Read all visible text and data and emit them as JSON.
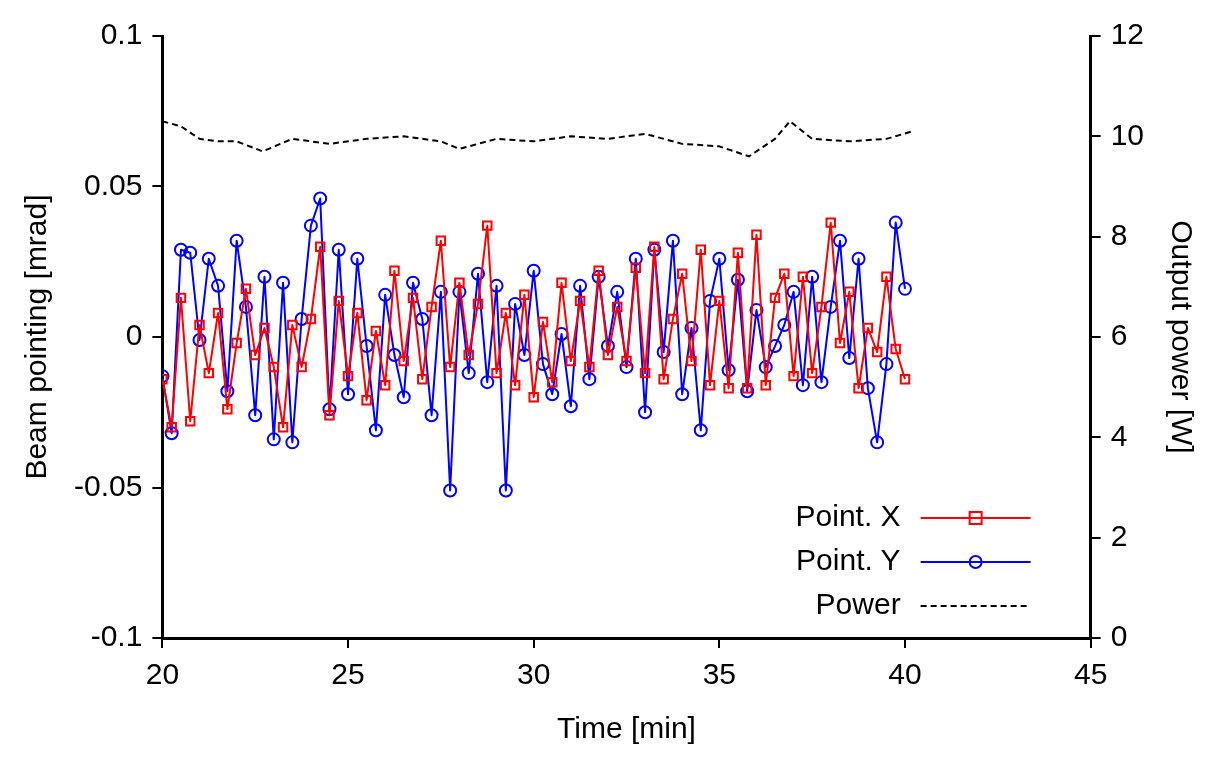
{
  "chart_data": {
    "type": "line",
    "xlabel": "Time [min]",
    "ylabel": "Beam pointing [mrad]",
    "y2label": "Output power [W]",
    "xlim": [
      20,
      45
    ],
    "xticks": [
      20,
      25,
      30,
      35,
      40,
      45
    ],
    "ylim": [
      -0.1,
      0.1
    ],
    "yticks": [
      -0.1,
      -0.05,
      0,
      0.05,
      0.1
    ],
    "y2lim": [
      0,
      12
    ],
    "y2ticks": [
      0,
      2,
      4,
      6,
      8,
      10,
      12
    ],
    "grid": false,
    "legend": "bottom right",
    "x": [
      20,
      20.25,
      20.5,
      20.75,
      21,
      21.25,
      21.5,
      21.75,
      22,
      22.25,
      22.5,
      22.75,
      23,
      23.25,
      23.5,
      23.75,
      24,
      24.25,
      24.5,
      24.75,
      25,
      25.25,
      25.5,
      25.75,
      26,
      26.25,
      26.5,
      26.75,
      27,
      27.25,
      27.5,
      27.75,
      28,
      28.25,
      28.5,
      28.75,
      29,
      29.25,
      29.5,
      29.75,
      30,
      30.25,
      30.5,
      30.75,
      31,
      31.25,
      31.5,
      31.75,
      32,
      32.25,
      32.5,
      32.75,
      33,
      33.25,
      33.5,
      33.75,
      34,
      34.25,
      34.5,
      34.75,
      35,
      35.25,
      35.5,
      35.75,
      36,
      36.25,
      36.5,
      36.75,
      37,
      37.25,
      37.5,
      37.75,
      38,
      38.25,
      38.5,
      38.75,
      39,
      39.25,
      39.5,
      39.75,
      40
    ],
    "series": [
      {
        "name": "Point. X",
        "color": "#ff0000",
        "marker": "square",
        "line_style": "solid",
        "values": [
          -0.014,
          -0.03,
          0.013,
          -0.028,
          0.004,
          -0.012,
          0.008,
          -0.024,
          -0.002,
          0.016,
          -0.006,
          0.003,
          -0.01,
          -0.03,
          0.004,
          -0.01,
          0.006,
          0.03,
          -0.026,
          0.012,
          -0.013,
          0.008,
          -0.021,
          0.002,
          -0.016,
          0.022,
          -0.008,
          0.013,
          -0.014,
          0.01,
          0.032,
          -0.01,
          0.018,
          -0.006,
          0.011,
          0.037,
          -0.012,
          0.008,
          -0.016,
          0.014,
          -0.02,
          0.005,
          -0.015,
          0.018,
          -0.008,
          0.012,
          -0.01,
          0.022,
          -0.006,
          0.01,
          -0.008,
          0.023,
          -0.012,
          0.03,
          -0.014,
          0.006,
          0.021,
          -0.008,
          0.029,
          -0.016,
          0.012,
          -0.017,
          0.028,
          -0.017,
          0.034,
          -0.016,
          0.013,
          0.021,
          -0.013,
          0.02,
          -0.012,
          0.01,
          0.038,
          -0.002,
          0.015,
          -0.017,
          0.003,
          -0.005,
          0.02,
          -0.004,
          -0.014
        ]
      },
      {
        "name": "Point. Y",
        "color": "#0000ff",
        "marker": "circle",
        "line_style": "solid",
        "values": [
          -0.013,
          -0.032,
          0.029,
          0.028,
          -0.001,
          0.026,
          0.017,
          -0.018,
          0.032,
          0.01,
          -0.026,
          0.02,
          -0.034,
          0.018,
          -0.035,
          0.006,
          0.037,
          0.046,
          -0.024,
          0.029,
          -0.019,
          0.026,
          -0.003,
          -0.031,
          0.014,
          -0.006,
          -0.02,
          0.018,
          0.006,
          -0.026,
          0.015,
          -0.051,
          0.015,
          -0.012,
          0.021,
          -0.015,
          0.017,
          -0.051,
          0.011,
          -0.006,
          0.022,
          -0.009,
          -0.019,
          0.001,
          -0.023,
          0.017,
          -0.014,
          0.02,
          -0.003,
          0.015,
          -0.01,
          0.026,
          -0.025,
          0.029,
          -0.005,
          0.032,
          -0.019,
          0.003,
          -0.031,
          0.012,
          0.026,
          -0.011,
          0.019,
          -0.018,
          0.009,
          -0.01,
          -0.003,
          0.004,
          0.015,
          -0.016,
          0.02,
          -0.015,
          0.01,
          0.032,
          -0.007,
          0.026,
          -0.017,
          -0.035,
          -0.009,
          0.038,
          0.016
        ]
      },
      {
        "name": "Power",
        "color": "#000000",
        "marker": "none",
        "line_style": "dashed",
        "axis": "y2",
        "x": [
          20,
          20.5,
          21,
          21.5,
          22,
          22.7,
          23.5,
          24.5,
          25.5,
          26.5,
          27.5,
          28,
          29,
          30,
          31,
          32,
          33,
          34,
          35,
          35.8,
          36.5,
          36.9,
          37.5,
          38.5,
          39.5,
          40.2
        ],
        "values": [
          10.3,
          10.2,
          9.95,
          9.9,
          9.9,
          9.7,
          9.95,
          9.85,
          9.95,
          10.0,
          9.9,
          9.75,
          9.95,
          9.9,
          10.0,
          9.95,
          10.05,
          9.85,
          9.8,
          9.6,
          9.95,
          10.3,
          9.95,
          9.9,
          9.95,
          10.1
        ]
      }
    ]
  }
}
